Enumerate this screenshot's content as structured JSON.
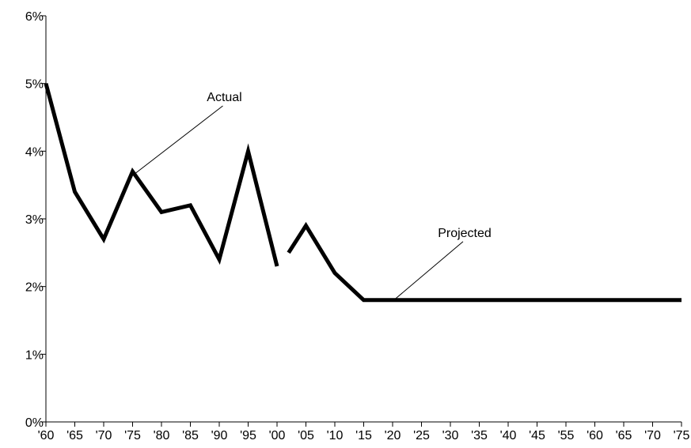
{
  "chart_data": {
    "type": "line",
    "title": "",
    "xlabel": "",
    "ylabel": "",
    "x_tick_labels": [
      "'60",
      "'65",
      "'70",
      "'75",
      "'80",
      "'85",
      "'90",
      "'95",
      "'00",
      "'05",
      "'10",
      "'15",
      "'20",
      "'25",
      "'30",
      "'35",
      "'40",
      "'45",
      "'55",
      "'60",
      "'65",
      "'70",
      "'75"
    ],
    "y_tick_labels": [
      "0%",
      "1%",
      "2%",
      "3%",
      "4%",
      "5%",
      "6%"
    ],
    "y_ticks": [
      0,
      1,
      2,
      3,
      4,
      5,
      6
    ],
    "ylim": [
      0,
      6
    ],
    "grid": false,
    "series": [
      {
        "x": [
          1960,
          1965,
          1970,
          1975,
          1980,
          1985,
          1990,
          1995,
          2000
        ],
        "y": [
          5.0,
          3.4,
          2.7,
          3.7,
          3.1,
          3.2,
          2.4,
          4.0,
          2.3
        ]
      },
      {
        "x": [
          2002,
          2005,
          2010,
          2015,
          2020,
          2025,
          2030,
          2035,
          2040,
          2045,
          2050,
          2055,
          2060,
          2065,
          2070,
          2075
        ],
        "y": [
          2.5,
          2.9,
          2.2,
          1.8,
          1.8,
          1.8,
          1.8,
          1.8,
          1.8,
          1.8,
          1.8,
          1.8,
          1.8,
          1.8,
          1.8,
          1.8
        ]
      }
    ],
    "annotations": [
      {
        "text": "Actual",
        "x": 1975,
        "y": 3.7
      },
      {
        "text": "Projected",
        "x": 2020,
        "y": 1.8
      }
    ],
    "style": {
      "line_color": "#000000",
      "axis_color": "#000000"
    }
  }
}
